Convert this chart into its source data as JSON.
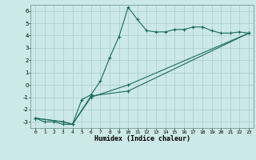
{
  "title": "",
  "xlabel": "Humidex (Indice chaleur)",
  "background_color": "#cce8e8",
  "line_color": "#1a6b5a",
  "grid_color": "#aacccc",
  "xlim": [
    -0.5,
    23.5
  ],
  "ylim": [
    -3.5,
    6.5
  ],
  "yticks": [
    -3,
    -2,
    -1,
    0,
    1,
    2,
    3,
    4,
    5,
    6
  ],
  "xticks": [
    0,
    1,
    2,
    3,
    4,
    5,
    6,
    7,
    8,
    9,
    10,
    11,
    12,
    13,
    14,
    15,
    16,
    17,
    18,
    19,
    20,
    21,
    22,
    23
  ],
  "series": [
    {
      "x": [
        0,
        1,
        2,
        3,
        4,
        5,
        6,
        7,
        8,
        9,
        10,
        11,
        12,
        13,
        14,
        15,
        16,
        17,
        18,
        19,
        20,
        21,
        22,
        23
      ],
      "y": [
        -2.7,
        -3.0,
        -3.0,
        -3.2,
        -3.2,
        -1.2,
        -0.8,
        0.3,
        2.2,
        3.9,
        6.3,
        5.3,
        4.4,
        4.3,
        4.3,
        4.5,
        4.5,
        4.7,
        4.7,
        4.4,
        4.2,
        4.2,
        4.3,
        4.2
      ]
    },
    {
      "x": [
        0,
        3,
        4,
        6,
        10,
        23
      ],
      "y": [
        -2.7,
        -3.0,
        -3.2,
        -1.0,
        0.0,
        4.2
      ]
    },
    {
      "x": [
        0,
        3,
        4,
        6,
        10,
        23
      ],
      "y": [
        -2.7,
        -3.0,
        -3.2,
        -0.9,
        -0.5,
        4.2
      ]
    }
  ]
}
